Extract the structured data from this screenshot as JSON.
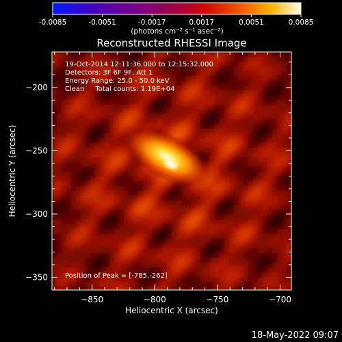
{
  "chart_data": {
    "type": "heatmap",
    "title": "Reconstructed RHESSI Image",
    "xlabel": "Heliocentric X (arcsec)",
    "ylabel": "Heliocentric Y (arcsec)",
    "xlim": [
      -882,
      -691
    ],
    "ylim": [
      -360,
      -172
    ],
    "xticks": [
      -850,
      -800,
      -750,
      -700
    ],
    "yticks": [
      -200,
      -250,
      -300,
      -350
    ],
    "colorbar": {
      "min": -0.0085,
      "max": 0.0085,
      "ticks": [
        "-0.0085",
        "-0.0051",
        "-0.0017",
        "0.0017",
        "0.0051",
        "0.0085"
      ],
      "unit_label": "(photons cm⁻² s⁻¹ asec⁻²)",
      "colormap": "blue-purple-red-orange-yellow-white"
    },
    "annotations": [
      "19-Oct-2014 12:11:36.000 to 12:15:32.000",
      "Detectors: 3F 6F 9F, Att 1",
      "Energy Range: 25.0 - 50.0 keV",
      "Clean     Total counts: 1.19E+04"
    ],
    "peak_label": "Position of Peak = [-785,-262]",
    "peak": {
      "x": -785,
      "y": -262,
      "value": 0.0085
    },
    "source": {
      "x": -790,
      "y": -255,
      "fwhm_major_arcsec": 26,
      "fwhm_minor_arcsec": 12,
      "angle_deg": -28
    }
  },
  "timestamp": "18-May-2022 09:07"
}
